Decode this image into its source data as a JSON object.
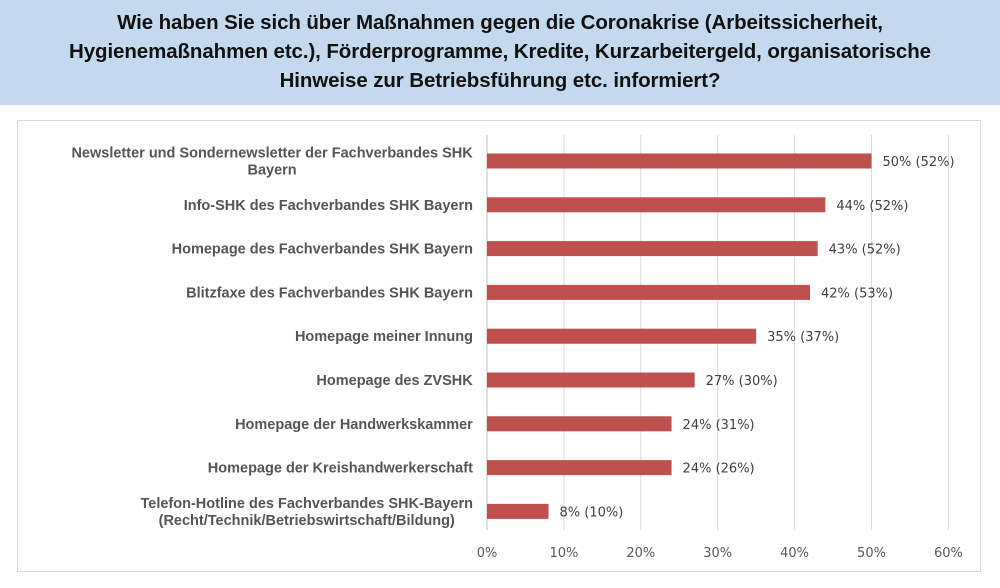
{
  "header": {
    "title": "Wie haben Sie sich über Maßnahmen gegen die Coronakrise (Arbeitssicherheit,\nHygienemaßnahmen etc.), Förderprogramme, Kredite,  Kurzarbeitergeld, organisatorische\nHinweise zur Betriebsführung etc. informiert?"
  },
  "colors": {
    "header_bg": "#c5d9ee",
    "bar": "#c0504d",
    "gridline": "#d9d9d9"
  },
  "chart_data": {
    "type": "bar",
    "orientation": "horizontal",
    "title": "Wie haben Sie sich über Maßnahmen gegen die Coronakrise (Arbeitssicherheit, Hygienemaßnahmen etc.), Förderprogramme, Kredite,  Kurzarbeitergeld, organisatorische Hinweise zur Betriebsführung etc. informiert?",
    "categories": [
      [
        "Newsletter und Sondernewsletter der Fachverbandes SHK",
        "Bayern"
      ],
      [
        "Info-SHK des Fachverbandes SHK Bayern"
      ],
      [
        "Homepage des Fachverbandes SHK Bayern"
      ],
      [
        "Blitzfaxe des Fachverbandes SHK Bayern"
      ],
      [
        "Homepage meiner Innung"
      ],
      [
        "Homepage des ZVSHK"
      ],
      [
        "Homepage der Handwerkskammer"
      ],
      [
        "Homepage der Kreishandwerkerschaft"
      ],
      [
        "Telefon-Hotline des Fachverbandes SHK-Bayern",
        "(Recht/Technik/Betriebswirtschaft/Bildung)"
      ]
    ],
    "values": [
      50,
      44,
      43,
      42,
      35,
      27,
      24,
      24,
      8
    ],
    "comparison_values": [
      52,
      52,
      52,
      53,
      37,
      30,
      31,
      26,
      10
    ],
    "data_labels": [
      "50% (52%)",
      "44% (52%)",
      "43% (52%)",
      "42% (53%)",
      "35% (37%)",
      "27% (30%)",
      "24% (31%)",
      "24% (26%)",
      "8% (10%)"
    ],
    "xlabel": "",
    "ylabel": "",
    "xlim": [
      0,
      60
    ],
    "xticks": [
      "0%",
      "10%",
      "20%",
      "30%",
      "40%",
      "50%",
      "60%"
    ],
    "grid": true,
    "legend": "none"
  }
}
